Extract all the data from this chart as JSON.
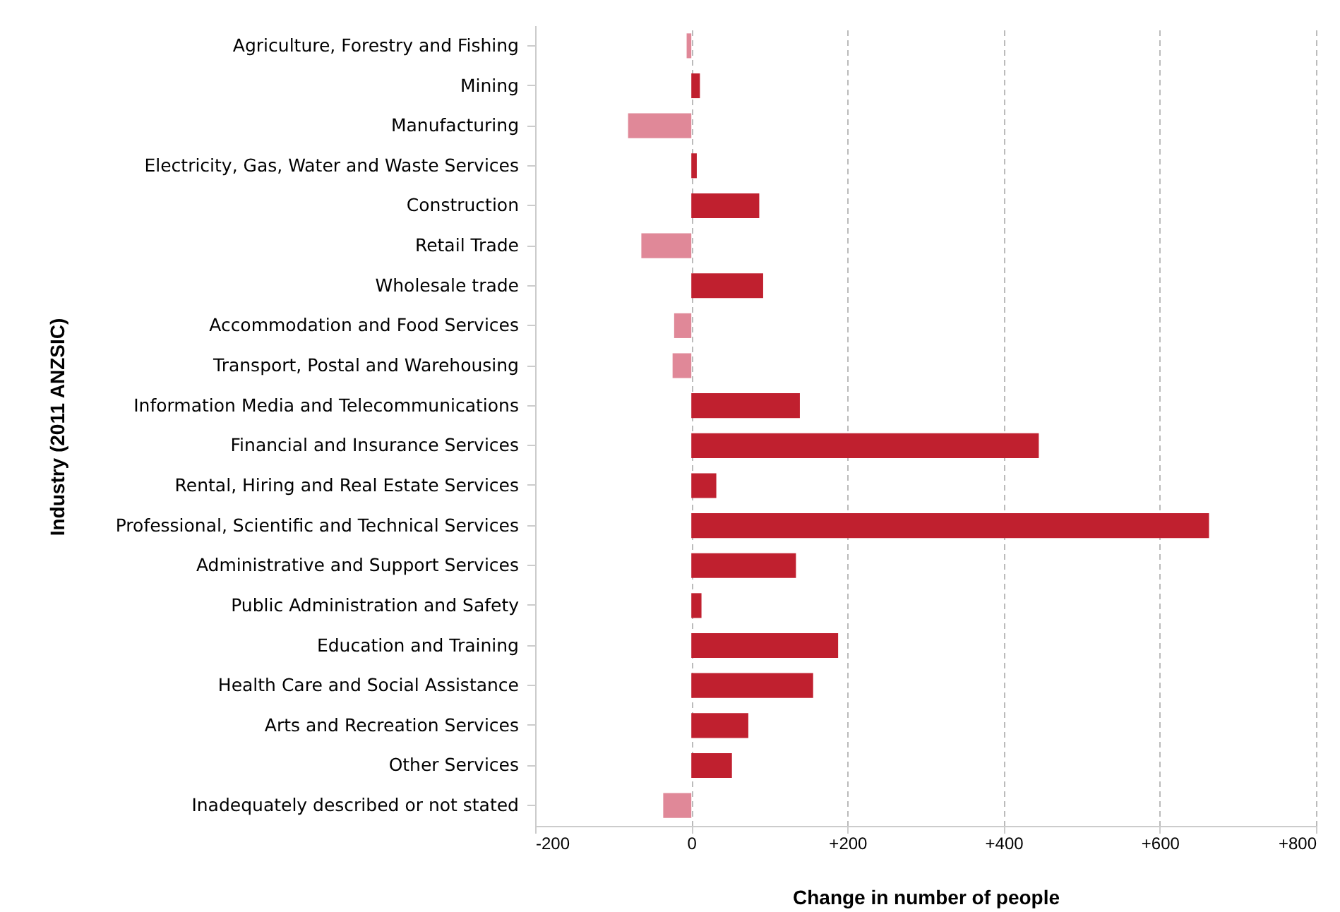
{
  "chart_data": {
    "type": "bar",
    "orientation": "horizontal",
    "xlabel": "Change in number of people",
    "ylabel": "Industry (2011 ANZSIC)",
    "categories": [
      "Agriculture, Forestry and Fishing",
      "Mining",
      "Manufacturing",
      "Electricity, Gas, Water and Waste Services",
      "Construction",
      "Retail Trade",
      "Wholesale trade",
      "Accommodation and Food Services",
      "Transport, Postal and Warehousing",
      "Information Media and Telecommunications",
      "Financial and Insurance Services",
      "Rental, Hiring and Real Estate Services",
      "Professional, Scientific and Technical Services",
      "Administrative and Support Services",
      "Public Administration and Safety",
      "Education and Training",
      "Health Care and Social Assistance",
      "Arts and Recreation Services",
      "Other Services",
      "Inadequately described or not stated"
    ],
    "values": [
      -6,
      11,
      -81,
      7,
      87,
      -64,
      92,
      -22,
      -24,
      139,
      445,
      32,
      663,
      134,
      13,
      188,
      156,
      73,
      52,
      -36
    ],
    "colors": [
      "#e08898",
      "#c0202f",
      "#e08898",
      "#c0202f",
      "#c0202f",
      "#e08898",
      "#c0202f",
      "#e08898",
      "#e08898",
      "#c0202f",
      "#c0202f",
      "#c0202f",
      "#c0202f",
      "#c0202f",
      "#c0202f",
      "#c0202f",
      "#c0202f",
      "#c0202f",
      "#c0202f",
      "#e08898"
    ],
    "xlim": [
      -200,
      800
    ],
    "xticks": [
      {
        "value": -200,
        "label": "-200"
      },
      {
        "value": 0,
        "label": "0"
      },
      {
        "value": 200,
        "label": "+200"
      },
      {
        "value": 400,
        "label": "+400"
      },
      {
        "value": 600,
        "label": "+600"
      },
      {
        "value": 800,
        "label": "+800"
      }
    ],
    "grid": "x"
  }
}
